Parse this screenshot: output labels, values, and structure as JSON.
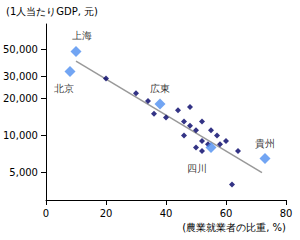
{
  "chart_data": {
    "type": "scatter",
    "ylabel": "(1人当たりGDP, 元)",
    "xlabel": "(農業就業者の比重, %)",
    "log": "y",
    "grid": false,
    "xlim": [
      0,
      80
    ],
    "xticks": [
      0,
      20,
      40,
      60,
      80
    ],
    "ylim": [
      3000,
      80000
    ],
    "yticks": [
      {
        "value": 5000,
        "label": "5,000"
      },
      {
        "value": 10000,
        "label": "10,000"
      },
      {
        "value": 20000,
        "label": "20,000"
      },
      {
        "value": 30000,
        "label": "30,000"
      },
      {
        "value": 50000,
        "label": "50,000"
      }
    ],
    "series": [
      {
        "type": "line",
        "color": "#999999",
        "line_style": "solid",
        "x": [
          10,
          72
        ],
        "values": [
          40000,
          5000
        ]
      },
      {
        "type": "scatter",
        "color": "#000066",
        "marker": "diamond",
        "x": [
          20,
          30,
          34,
          36,
          40,
          44,
          46,
          46,
          48,
          48,
          50,
          50,
          52,
          52,
          54,
          55,
          57,
          58,
          60,
          62,
          64,
          52
        ],
        "values": [
          29000,
          22000,
          19000,
          15000,
          14000,
          16000,
          13000,
          10000,
          17000,
          12000,
          11000,
          8000,
          9000,
          7500,
          8500,
          11000,
          10000,
          8500,
          9000,
          4000,
          7500,
          13000
        ]
      },
      {
        "type": "scatter",
        "color": "#4f8ff0",
        "marker": "diamond",
        "labels": [
          "上海",
          "北京",
          "広東",
          "四川",
          "貴州"
        ],
        "x": [
          10,
          8,
          38,
          55,
          73
        ],
        "values": [
          48000,
          33000,
          18000,
          8000,
          6500
        ]
      }
    ]
  }
}
